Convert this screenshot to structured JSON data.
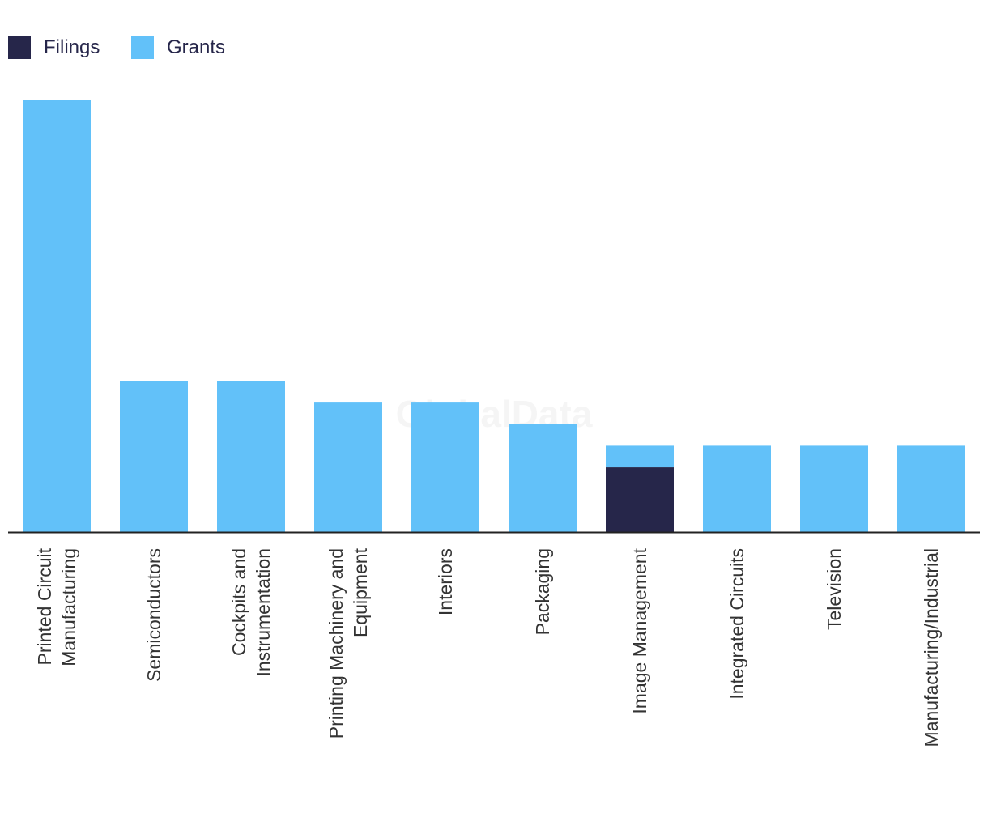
{
  "legend": {
    "filings_label": "Filings",
    "grants_label": "Grants"
  },
  "watermark": "GlobalData",
  "colors": {
    "filings": "#26264a",
    "grants": "#62c1f9",
    "axis": "#222222"
  },
  "chart_data": {
    "type": "bar",
    "stacked": true,
    "title": "",
    "xlabel": "",
    "ylabel": "",
    "ylim": [
      0,
      20
    ],
    "grid": false,
    "legend_position": "top-left",
    "categories": [
      [
        "Printed Circuit",
        "Manufacturing"
      ],
      [
        "Semiconductors"
      ],
      [
        "Cockpits and",
        "Instrumentation"
      ],
      [
        "Printing Machinery and",
        "Equipment"
      ],
      [
        "Interiors"
      ],
      [
        "Packaging"
      ],
      [
        "Image Management"
      ],
      [
        "Integrated Circuits"
      ],
      [
        "Television"
      ],
      [
        "Manufacturing/Industrial"
      ]
    ],
    "series": [
      {
        "name": "Filings",
        "values": [
          0,
          0,
          0,
          0,
          0,
          0,
          3,
          0,
          0,
          0
        ]
      },
      {
        "name": "Grants",
        "values": [
          20,
          7,
          7,
          6,
          6,
          5,
          1,
          4,
          4,
          4
        ]
      }
    ]
  }
}
